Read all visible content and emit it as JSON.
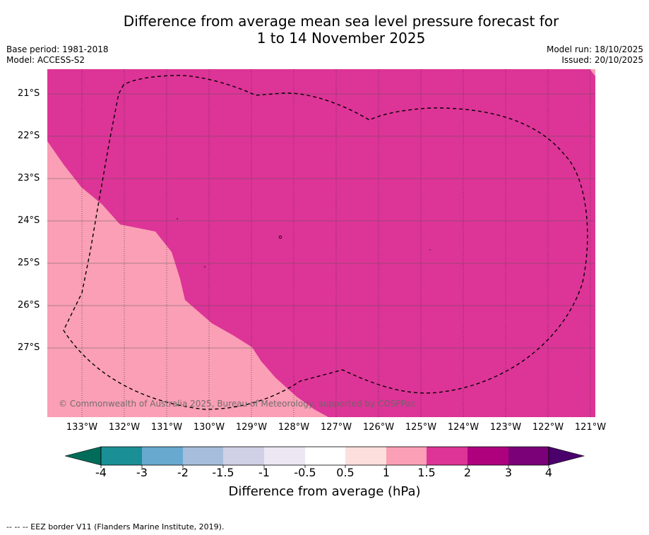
{
  "title_line1": "Difference from average mean sea level pressure forecast for",
  "title_line2": "1 to 14 November 2025",
  "meta_left": {
    "base_period": "Base period: 1981-2018",
    "model": "Model: ACCESS-S2"
  },
  "meta_right": {
    "model_run": "Model run: 18/10/2025",
    "issued": "Issued: 20/10/2025"
  },
  "lat_labels": [
    "21°S",
    "22°S",
    "23°S",
    "24°S",
    "25°S",
    "26°S",
    "27°S"
  ],
  "lon_labels": [
    "133°W",
    "132°W",
    "131°W",
    "130°W",
    "129°W",
    "128°W",
    "127°W",
    "126°W",
    "125°W",
    "124°W",
    "123°W",
    "122°W",
    "121°W"
  ],
  "copyright": "© Commonwealth of Australia 2025, Bureau of Meteorology, supported by COSPPac",
  "colorbar": {
    "ticks": [
      "-4",
      "-3",
      "-2",
      "-1.5",
      "-1",
      "-0.5",
      "0.5",
      "1",
      "1.5",
      "2",
      "3",
      "4"
    ],
    "colors": [
      "#1a8f96",
      "#67a9cf",
      "#a6bddb",
      "#d0d1e6",
      "#ece7f2",
      "#ffffff",
      "#fde0dd",
      "#fa9fb5",
      "#dd3497",
      "#ae017e",
      "#7a0177"
    ],
    "under_color": "#016c59",
    "over_color": "#49006a",
    "title": "Difference from average (hPa)"
  },
  "map_colors": {
    "high": "#dd3497",
    "mid": "#fa9fb5"
  },
  "footer": "-- -- -- EEZ border V11 (Flanders Marine Institute, 2019)."
}
